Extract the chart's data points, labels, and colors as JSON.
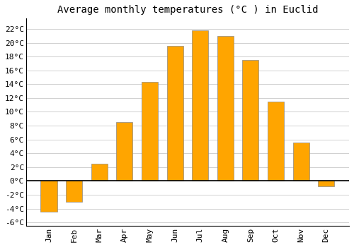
{
  "title": "Average monthly temperatures (°C ) in Euclid",
  "months": [
    "Jan",
    "Feb",
    "Mar",
    "Apr",
    "May",
    "Jun",
    "Jul",
    "Aug",
    "Sep",
    "Oct",
    "Nov",
    "Dec"
  ],
  "values": [
    -4.5,
    -3.0,
    2.5,
    8.5,
    14.3,
    19.5,
    21.8,
    21.0,
    17.5,
    11.5,
    5.6,
    -0.8
  ],
  "bar_color": "#FFA500",
  "bar_edge_color": "#888888",
  "background_color": "#ffffff",
  "grid_color": "#d0d0d0",
  "ylim": [
    -6.5,
    23.5
  ],
  "yticks": [
    -6,
    -4,
    -2,
    0,
    2,
    4,
    6,
    8,
    10,
    12,
    14,
    16,
    18,
    20,
    22
  ],
  "ytick_labels": [
    "-6°C",
    "-4°C",
    "-2°C",
    "0°C",
    "2°C",
    "4°C",
    "6°C",
    "8°C",
    "10°C",
    "12°C",
    "14°C",
    "16°C",
    "18°C",
    "20°C",
    "22°C"
  ],
  "title_fontsize": 10,
  "tick_fontsize": 8,
  "zero_line_color": "#000000",
  "spine_color": "#000000",
  "bar_width": 0.65
}
